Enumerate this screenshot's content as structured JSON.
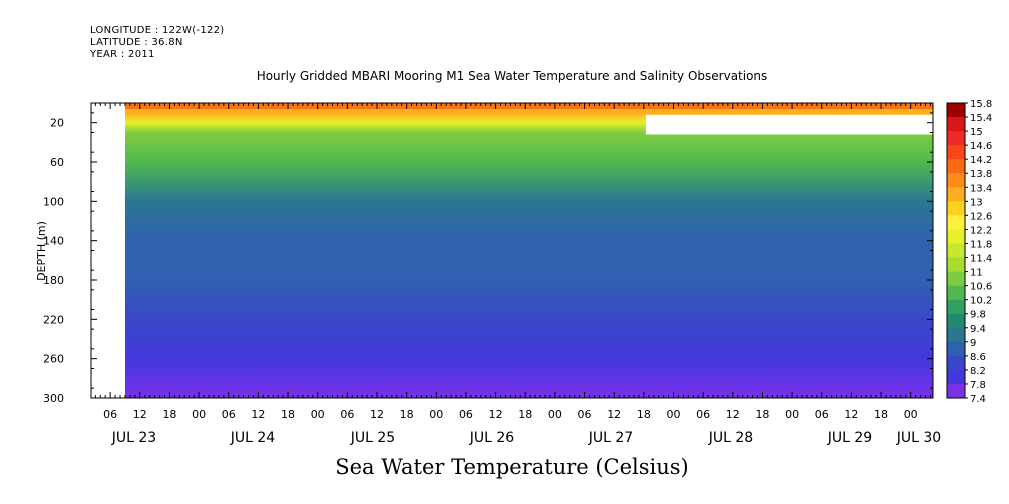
{
  "header": {
    "longitude": "LONGITUDE : 122W(-122)",
    "latitude": "LATITUDE : 36.8N",
    "year": "YEAR : 2011"
  },
  "chart_data": {
    "type": "heatmap",
    "title": "Hourly Gridded MBARI Mooring M1 Sea Water Temperature and Salinity Observations",
    "xlabel": "",
    "ylabel": "DEPTH (m)",
    "colorbar_label": "Sea Water Temperature (Celsius)",
    "ylim": [
      300,
      0
    ],
    "y_ticks": [
      20,
      60,
      100,
      140,
      180,
      220,
      260,
      300
    ],
    "x_hour_labels": [
      "06",
      "12",
      "18",
      "00",
      "06",
      "12",
      "18",
      "00",
      "06",
      "12",
      "18",
      "00",
      "06",
      "12",
      "18",
      "00",
      "06",
      "12",
      "18",
      "00",
      "06",
      "12",
      "18",
      "00",
      "06",
      "12",
      "18",
      "00"
    ],
    "x_day_labels": [
      "JUL 23",
      "JUL 24",
      "JUL 25",
      "JUL 26",
      "JUL 27",
      "JUL 28",
      "JUL 29",
      "JUL 30"
    ],
    "colorbar_levels": [
      "15.8",
      "15.4",
      "15",
      "14.6",
      "14.2",
      "13.8",
      "13.4",
      "13",
      "12.6",
      "12.2",
      "11.8",
      "11.4",
      "11",
      "10.6",
      "10.2",
      "9.8",
      "9.4",
      "9",
      "8.6",
      "8.2",
      "7.8",
      "7.4"
    ],
    "colorbar_colors": [
      "#a00000",
      "#d81818",
      "#f02828",
      "#f84818",
      "#fa6a10",
      "#fb8c18",
      "#fdad20",
      "#ffd020",
      "#fff040",
      "#e8f028",
      "#c8e830",
      "#a8dc30",
      "#80cc40",
      "#50b850",
      "#30a060",
      "#208a70",
      "#2a7890",
      "#3060b0",
      "#3a48c8",
      "#4438dc",
      "#7a30e8",
      "#b020f0"
    ],
    "depth_profile": [
      {
        "depth": 10,
        "temp": 13.6
      },
      {
        "depth": 20,
        "temp": 12.0
      },
      {
        "depth": 30,
        "temp": 11.1
      },
      {
        "depth": 60,
        "temp": 10.4
      },
      {
        "depth": 100,
        "temp": 9.6
      },
      {
        "depth": 140,
        "temp": 9.2
      },
      {
        "depth": 180,
        "temp": 8.9
      },
      {
        "depth": 220,
        "temp": 8.6
      },
      {
        "depth": 260,
        "temp": 8.2
      },
      {
        "depth": 300,
        "temp": 7.7
      }
    ],
    "missing_data_regions": [
      {
        "time_from": "JUL 23 00",
        "time_to": "JUL 23 09",
        "depth_from": 0,
        "depth_to": 300
      },
      {
        "time_from": "JUL 27 18",
        "time_to": "JUL 30 12",
        "depth_from": 12,
        "depth_to": 30
      }
    ]
  }
}
